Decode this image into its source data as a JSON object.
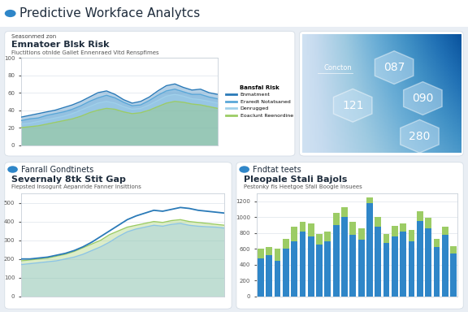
{
  "header": {
    "title": "Predictive Workface Analytcs"
  },
  "chart_data": [
    {
      "type": "area",
      "section": "Seasonmed zon",
      "title": "Emnatoer Blsk Risk",
      "subtitle": "Fiuctitions otnlde Gallet Ennenraed Vitd Renspfimes",
      "categories": [
        null,
        null,
        null,
        null,
        null,
        null,
        null,
        null,
        null,
        null,
        null,
        null,
        null,
        null,
        null,
        null,
        null,
        null,
        null,
        null,
        null,
        null,
        null,
        null
      ],
      "series": [
        {
          "name": "Enmatment",
          "color": "#2a7ab8",
          "values": [
            32,
            34,
            36,
            38,
            40,
            43,
            46,
            50,
            55,
            60,
            62,
            58,
            52,
            48,
            50,
            55,
            62,
            68,
            70,
            66,
            63,
            64,
            60,
            58
          ]
        },
        {
          "name": "Eraredt Notatsaned",
          "color": "#5aa7d8",
          "values": [
            28,
            30,
            31,
            34,
            36,
            38,
            41,
            45,
            50,
            54,
            57,
            54,
            49,
            45,
            46,
            51,
            57,
            62,
            64,
            61,
            58,
            58,
            55,
            53
          ]
        },
        {
          "name": "Denrugged",
          "color": "#9fd0ea",
          "values": [
            24,
            25,
            27,
            29,
            31,
            33,
            36,
            40,
            44,
            48,
            50,
            48,
            44,
            41,
            42,
            46,
            51,
            56,
            58,
            56,
            53,
            52,
            50,
            48
          ]
        },
        {
          "name": "Eoaclunt Reenordine",
          "color": "#9ccc65",
          "values": [
            20,
            21,
            22,
            24,
            26,
            28,
            30,
            33,
            37,
            40,
            42,
            41,
            38,
            36,
            37,
            40,
            44,
            48,
            50,
            49,
            47,
            46,
            44,
            42
          ]
        }
      ],
      "ylim": [
        0,
        100
      ],
      "yticks": [
        0,
        20,
        40,
        60,
        80,
        100
      ],
      "grid": true,
      "legend": "center left",
      "legend_title": "Bansfal Risk"
    },
    {
      "type": "area",
      "section": "Fanrall Gondtinets",
      "title": "Severnaly 8tk Stit Gap",
      "subtitle": "Fiepsted Insogunt Aepanride Fanner Insittions",
      "categories": [
        null,
        null,
        null,
        null,
        null,
        null,
        null,
        null,
        null,
        null,
        null,
        null,
        null,
        null,
        null,
        null,
        null,
        null,
        null,
        null,
        null,
        null,
        null,
        null
      ],
      "series": [
        {
          "color": "#9ccc65",
          "values": [
            190,
            195,
            200,
            205,
            215,
            225,
            240,
            260,
            280,
            300,
            330,
            350,
            370,
            380,
            390,
            400,
            395,
            405,
            410,
            400,
            395,
            390,
            385,
            380
          ]
        },
        {
          "color": "#8cc4e6",
          "values": [
            170,
            175,
            180,
            185,
            190,
            200,
            210,
            225,
            245,
            265,
            290,
            320,
            345,
            360,
            370,
            380,
            375,
            385,
            390,
            380,
            375,
            372,
            370,
            365
          ]
        },
        {
          "type": "line",
          "color": "#2a7ab8",
          "values": [
            200,
            200,
            205,
            210,
            220,
            230,
            245,
            265,
            290,
            320,
            350,
            380,
            410,
            430,
            445,
            460,
            455,
            465,
            475,
            470,
            460,
            455,
            450,
            445
          ]
        }
      ],
      "ylim": [
        0,
        550
      ],
      "yticks": [
        0,
        100,
        200,
        300,
        400,
        500
      ],
      "grid": true
    },
    {
      "type": "bar",
      "stacked": true,
      "section": "Fndtat teets",
      "title": "Pleopale Stali Bajols",
      "subtitle": "Pestonky fis Heetgoe Sfall Boogle Insuees",
      "categories": [
        null,
        null,
        null,
        null,
        null,
        null,
        null,
        null,
        null,
        null,
        null,
        null,
        null,
        null,
        null,
        null,
        null,
        null,
        null,
        null,
        null,
        null,
        null,
        null
      ],
      "series": [
        {
          "color": "#2f86c8",
          "values": [
            480,
            520,
            450,
            600,
            700,
            820,
            760,
            650,
            700,
            900,
            1000,
            780,
            720,
            1180,
            880,
            680,
            760,
            820,
            700,
            950,
            860,
            620,
            780,
            540
          ]
        },
        {
          "color": "#9ccc65",
          "values": [
            120,
            100,
            150,
            130,
            180,
            120,
            160,
            140,
            120,
            150,
            130,
            160,
            140,
            70,
            120,
            110,
            130,
            100,
            140,
            120,
            130,
            110,
            100,
            90
          ]
        }
      ],
      "ylim": [
        0,
        1300
      ],
      "yticks": [
        0,
        200,
        400,
        600,
        800,
        1000,
        1200
      ],
      "grid": true
    }
  ],
  "panel": {
    "label": "Concton",
    "hexagons": [
      "087",
      "121",
      "090",
      "280"
    ]
  }
}
